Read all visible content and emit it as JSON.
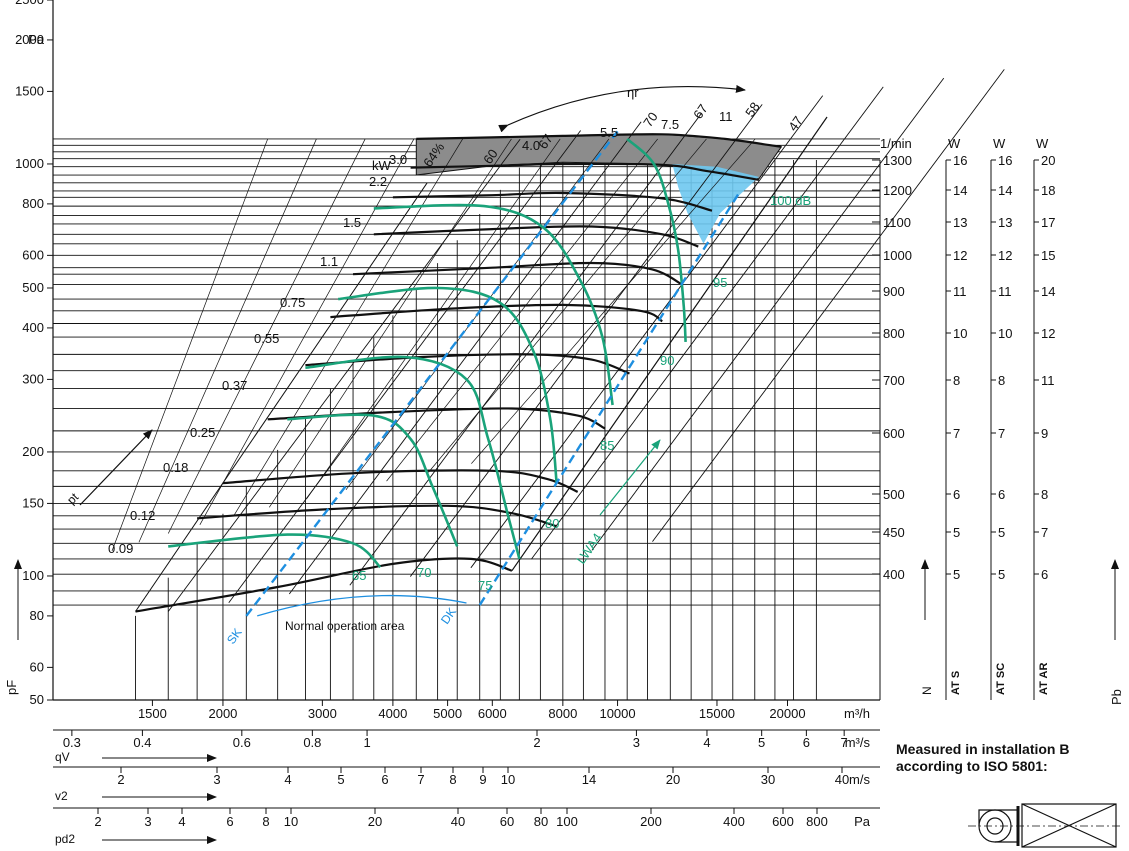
{
  "note": {
    "line1": "Measured in installation B",
    "line2": "according to ISO 5801:"
  },
  "chart_data": {
    "type": "line",
    "title": "",
    "colors": {
      "curves": "#111111",
      "efficiency": "#1aa37a",
      "limits": "#1e8fe0",
      "max_area": "#8c8c8c",
      "noise_area": "#6ec8ef"
    },
    "y_axis": {
      "label": "pF",
      "unit": "Pa",
      "scale": "log",
      "range": [
        50,
        2500
      ],
      "ticks": [
        "2500",
        "2000",
        "1500",
        "1000",
        "800",
        "600",
        "500",
        "400",
        "300",
        "200",
        "150",
        "100",
        "80",
        "60",
        "50"
      ]
    },
    "x_axis": {
      "unit": "m³/h",
      "scale": "log",
      "ticks": [
        "1500",
        "2000",
        "3000",
        "4000",
        "5000",
        "6000",
        "8000",
        "10000",
        "15000",
        "20000"
      ]
    },
    "flow_axis": {
      "label": "qV",
      "unit": "m³/s",
      "ticks": [
        "0.3",
        "0.4",
        "0.6",
        "0.8",
        "1",
        "2",
        "3",
        "4",
        "5",
        "6",
        "7"
      ]
    },
    "velocity_axis": {
      "label": "v2",
      "unit": "m/s",
      "ticks": [
        "2",
        "3",
        "4",
        "5",
        "6",
        "7",
        "8",
        "9",
        "10",
        "14",
        "20",
        "30",
        "40"
      ]
    },
    "dynamic_pressure_axis": {
      "label": "pd2",
      "unit": "Pa",
      "ticks": [
        "2",
        "3",
        "4",
        "6",
        "8",
        "10",
        "20",
        "40",
        "60",
        "80",
        "100",
        "200",
        "400",
        "600",
        "800"
      ]
    },
    "speed_scale": {
      "label": "N",
      "unit": "1/min",
      "ticks": [
        "1300",
        "1200",
        "1100",
        "1000",
        "900",
        "800",
        "700",
        "600",
        "500",
        "450",
        "400"
      ]
    },
    "power_scales": [
      {
        "label": "AT S",
        "unit": "W",
        "values": [
          "16",
          "14",
          "13",
          "12",
          "11",
          "10",
          "8",
          "7",
          "6",
          "5",
          "5"
        ]
      },
      {
        "label": "AT SC",
        "unit": "W",
        "values": [
          "16",
          "14",
          "13",
          "12",
          "11",
          "10",
          "8",
          "7",
          "6",
          "5",
          "5"
        ]
      },
      {
        "label": "AT AR",
        "unit": "W",
        "values": [
          "20",
          "18",
          "17",
          "15",
          "14",
          "12",
          "11",
          "9",
          "8",
          "7",
          "6"
        ]
      }
    ],
    "pb_label": "Pb",
    "speed_curves": [
      {
        "rpm": 1300,
        "points": [
          [
            4400,
            1150
          ],
          [
            6000,
            1160
          ],
          [
            8000,
            1170
          ],
          [
            12000,
            1180
          ],
          [
            15500,
            1150
          ],
          [
            19500,
            1100
          ]
        ]
      },
      {
        "rpm": 1200,
        "points": [
          [
            4300,
            980
          ],
          [
            6000,
            990
          ],
          [
            8000,
            1000
          ],
          [
            12000,
            995
          ],
          [
            14500,
            960
          ],
          [
            17800,
            915
          ]
        ]
      },
      {
        "rpm": 1100,
        "points": [
          [
            4000,
            830
          ],
          [
            6000,
            840
          ],
          [
            8000,
            850
          ],
          [
            12000,
            825
          ],
          [
            14700,
            770
          ]
        ]
      },
      {
        "rpm": 1000,
        "points": [
          [
            3700,
            675
          ],
          [
            6000,
            695
          ],
          [
            9000,
            705
          ],
          [
            12000,
            675
          ],
          [
            13900,
            630
          ]
        ]
      },
      {
        "rpm": 900,
        "points": [
          [
            3400,
            540
          ],
          [
            6000,
            560
          ],
          [
            9000,
            575
          ],
          [
            11500,
            555
          ],
          [
            13000,
            510
          ]
        ]
      },
      {
        "rpm": 800,
        "points": [
          [
            3100,
            425
          ],
          [
            5000,
            445
          ],
          [
            8000,
            455
          ],
          [
            11000,
            440
          ],
          [
            12000,
            415
          ]
        ]
      },
      {
        "rpm": 700,
        "points": [
          [
            2800,
            325
          ],
          [
            4500,
            340
          ],
          [
            7000,
            345
          ],
          [
            9000,
            335
          ],
          [
            10500,
            310
          ]
        ]
      },
      {
        "rpm": 600,
        "points": [
          [
            2400,
            240
          ],
          [
            4000,
            250
          ],
          [
            6500,
            255
          ],
          [
            8500,
            245
          ],
          [
            9500,
            228
          ]
        ]
      },
      {
        "rpm": 500,
        "points": [
          [
            2000,
            168
          ],
          [
            3500,
            178
          ],
          [
            6000,
            180
          ],
          [
            7500,
            172
          ],
          [
            8500,
            160
          ]
        ]
      },
      {
        "rpm": 450,
        "points": [
          [
            1800,
            138
          ],
          [
            3000,
            145
          ],
          [
            5000,
            148
          ],
          [
            6500,
            142
          ],
          [
            7800,
            132
          ]
        ]
      },
      {
        "rpm": 400,
        "points": [
          [
            1400,
            82
          ],
          [
            2500,
            94
          ],
          [
            4000,
            107
          ],
          [
            5500,
            110
          ],
          [
            6500,
            103
          ]
        ]
      }
    ],
    "power_labels": [
      "0.09",
      "0.12",
      "0.18",
      "0.25",
      "0.37",
      "0.55",
      "0.75",
      "1.1",
      "1.5",
      "2.2",
      "3.0",
      "4.0",
      "5.5",
      "7.5",
      "11",
      "kW"
    ],
    "efficiency_labels": [
      "64%",
      "60",
      "67",
      "70",
      "67",
      "58",
      "47",
      "ηr"
    ],
    "noise_labels": [
      "65",
      "70",
      "75",
      "80",
      "85",
      "90",
      "95",
      "100 dB",
      "LWA4"
    ],
    "annotations": [
      "Normal operation area",
      "SK",
      "DK"
    ],
    "pressure_arrow_label": "pt"
  }
}
